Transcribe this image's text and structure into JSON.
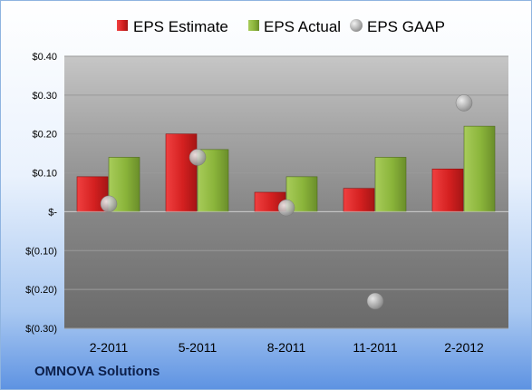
{
  "footer": {
    "company": "OMNOVA Solutions"
  },
  "chart_data": {
    "type": "bar",
    "categories": [
      "2-2011",
      "5-2011",
      "8-2011",
      "11-2011",
      "2-2012"
    ],
    "series": [
      {
        "name": "EPS Estimate",
        "kind": "bar",
        "color": "#d42020",
        "values": [
          0.09,
          0.2,
          0.05,
          0.06,
          0.11
        ]
      },
      {
        "name": "EPS Actual",
        "kind": "bar",
        "color": "#8ab43a",
        "values": [
          0.14,
          0.16,
          0.09,
          0.14,
          0.22
        ]
      },
      {
        "name": "EPS GAAP",
        "kind": "scatter",
        "color": "#b8b8b8",
        "values": [
          0.02,
          0.14,
          0.01,
          -0.23,
          0.28
        ]
      }
    ],
    "ylim": [
      -0.3,
      0.4
    ],
    "yticks": [
      {
        "value": 0.4,
        "label": "$0.40"
      },
      {
        "value": 0.3,
        "label": "$0.30"
      },
      {
        "value": 0.2,
        "label": "$0.20"
      },
      {
        "value": 0.1,
        "label": "$0.10"
      },
      {
        "value": 0.0,
        "label": "$-"
      },
      {
        "value": -0.1,
        "label": "$(0.10)"
      },
      {
        "value": -0.2,
        "label": "$(0.20)"
      },
      {
        "value": -0.3,
        "label": "$(0.30)"
      }
    ],
    "legend_position": "top",
    "grid": true
  }
}
